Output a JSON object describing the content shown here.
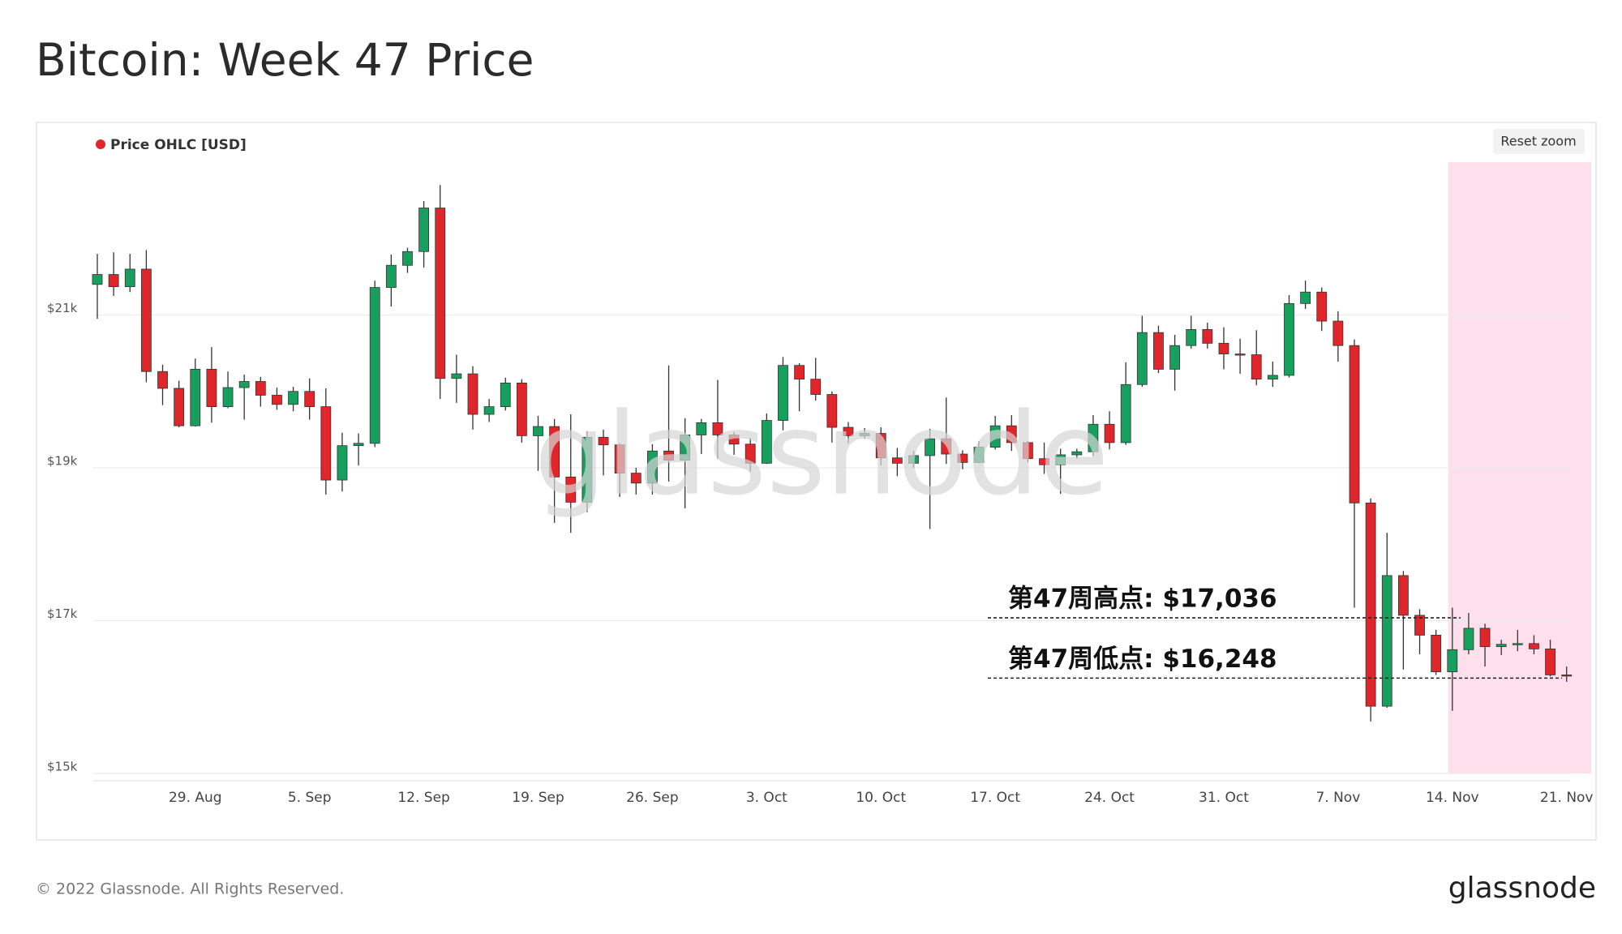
{
  "chart_data": {
    "type": "candlestick",
    "title": "Bitcoin: Week 47 Price",
    "legend": "Price OHLC [USD]",
    "legend_color": "#e0262b",
    "up_color": "#17a05d",
    "down_color": "#e0262b",
    "grid": true,
    "highlight_from": "14. Nov",
    "highlight_color": "#fde0ec",
    "ylim": [
      15000,
      23000
    ],
    "yticks": [
      {
        "value": 15000,
        "label": "$15k"
      },
      {
        "value": 17000,
        "label": "$17k"
      },
      {
        "value": 19000,
        "label": "$19k"
      },
      {
        "value": 21000,
        "label": "$21k"
      }
    ],
    "categories": [
      null,
      null,
      null,
      null,
      null,
      null,
      "29. Aug",
      null,
      null,
      null,
      null,
      null,
      null,
      "5. Sep",
      null,
      null,
      null,
      null,
      null,
      null,
      "12. Sep",
      null,
      null,
      null,
      null,
      null,
      null,
      "19. Sep",
      null,
      null,
      null,
      null,
      null,
      null,
      "26. Sep",
      null,
      null,
      null,
      null,
      null,
      null,
      "3. Oct",
      null,
      null,
      null,
      null,
      null,
      null,
      "10. Oct",
      null,
      null,
      null,
      null,
      null,
      null,
      "17. Oct",
      null,
      null,
      null,
      null,
      null,
      null,
      "24. Oct",
      null,
      null,
      null,
      null,
      null,
      null,
      "31. Oct",
      null,
      null,
      null,
      null,
      null,
      null,
      "7. Nov",
      null,
      null,
      null,
      null,
      null,
      null,
      "14. Nov",
      null,
      null,
      null,
      null,
      null,
      null,
      "21. Nov"
    ],
    "open": [
      21400,
      21530,
      21370,
      21600,
      20260,
      20040,
      19550,
      20290,
      19800,
      20050,
      20130,
      19950,
      19830,
      20000,
      19800,
      18840,
      19290,
      19320,
      21360,
      21650,
      21830,
      22400,
      20170,
      20230,
      19700,
      19800,
      20110,
      19420,
      19540,
      18880,
      18550,
      19400,
      19300,
      18930,
      18800,
      19220,
      19100,
      19430,
      19590,
      19430,
      19310,
      19060,
      19620,
      20340,
      20160,
      19960,
      19530,
      19420,
      19450,
      19130,
      19060,
      19160,
      19380,
      19180,
      19070,
      19270,
      19550,
      19330,
      19120,
      19040,
      19170,
      19210,
      19570,
      19330,
      20090,
      20770,
      20290,
      20600,
      20810,
      20630,
      20490,
      20480,
      20160,
      20210,
      21150,
      21300,
      20920,
      20600,
      18540,
      15880,
      17590,
      17070,
      16810,
      16330,
      16620,
      16900,
      16660,
      16690,
      16700,
      16630,
      16290
    ],
    "high": [
      21800,
      21820,
      21800,
      21850,
      20350,
      20140,
      20430,
      20580,
      20260,
      20220,
      20190,
      20050,
      20060,
      20170,
      20040,
      19460,
      19450,
      21450,
      21790,
      21880,
      22490,
      22700,
      20480,
      20330,
      19900,
      20180,
      20160,
      19680,
      19640,
      19700,
      19480,
      19500,
      19320,
      19000,
      19310,
      20340,
      19650,
      19640,
      20150,
      19470,
      19390,
      19710,
      20450,
      20370,
      20440,
      20000,
      19600,
      19520,
      19530,
      19260,
      19220,
      19510,
      19920,
      19230,
      19350,
      19680,
      19690,
      19350,
      19330,
      19250,
      19250,
      19690,
      19740,
      20380,
      20990,
      20860,
      20740,
      20990,
      20900,
      20840,
      20690,
      20800,
      20390,
      21260,
      21450,
      21360,
      21050,
      20680,
      18600,
      18150,
      17650,
      17150,
      16880,
      17170,
      17100,
      16960,
      16750,
      16880,
      16810,
      16750,
      16400
    ],
    "low": [
      20950,
      21250,
      21300,
      20120,
      19820,
      19530,
      19540,
      19590,
      19780,
      19630,
      19800,
      19760,
      19740,
      19630,
      18650,
      18690,
      19030,
      19270,
      21110,
      21550,
      21620,
      19900,
      19850,
      19500,
      19600,
      19750,
      19330,
      18960,
      18280,
      18150,
      18420,
      18900,
      18620,
      18650,
      18650,
      18820,
      18470,
      19180,
      19120,
      19170,
      18950,
      19050,
      19490,
      19740,
      19880,
      19330,
      19320,
      19380,
      19030,
      18890,
      19000,
      18200,
      19050,
      18980,
      19060,
      19240,
      19220,
      19070,
      18920,
      18660,
      19120,
      19150,
      19240,
      19300,
      20060,
      20240,
      20010,
      20560,
      20560,
      20290,
      20230,
      20080,
      20060,
      20180,
      21080,
      20790,
      20390,
      17170,
      15680,
      15860,
      16360,
      16560,
      16290,
      15820,
      16560,
      16400,
      16550,
      16600,
      16560,
      16270,
      16200
    ],
    "close": [
      21530,
      21370,
      21600,
      20260,
      20040,
      19550,
      20290,
      19800,
      20050,
      20130,
      19950,
      19830,
      20000,
      19800,
      18840,
      19290,
      19320,
      21360,
      21650,
      21830,
      22400,
      20170,
      20230,
      19700,
      19800,
      20110,
      19420,
      19540,
      18880,
      18550,
      19400,
      19300,
      18930,
      18800,
      19220,
      19100,
      19430,
      19590,
      19430,
      19310,
      19060,
      19620,
      20340,
      20160,
      19960,
      19530,
      19420,
      19450,
      19130,
      19060,
      19160,
      19380,
      19180,
      19070,
      19270,
      19550,
      19330,
      19120,
      19040,
      19170,
      19210,
      19570,
      19330,
      20090,
      20770,
      20290,
      20600,
      20810,
      20630,
      20490,
      20480,
      20160,
      20210,
      21150,
      21300,
      20920,
      20600,
      18540,
      15880,
      17590,
      17070,
      16810,
      16330,
      16620,
      16900,
      16660,
      16690,
      16700,
      16630,
      16290,
      16280
    ],
    "annotations": [
      {
        "label": "第47周高点: $17,036",
        "value": 17036
      },
      {
        "label": "第47周低点: $16,248",
        "value": 16248
      }
    ]
  },
  "button": "Reset zoom",
  "watermark": "glassnode",
  "footer": "© 2022 Glassnode. All Rights Reserved.",
  "brand": "glassnode"
}
